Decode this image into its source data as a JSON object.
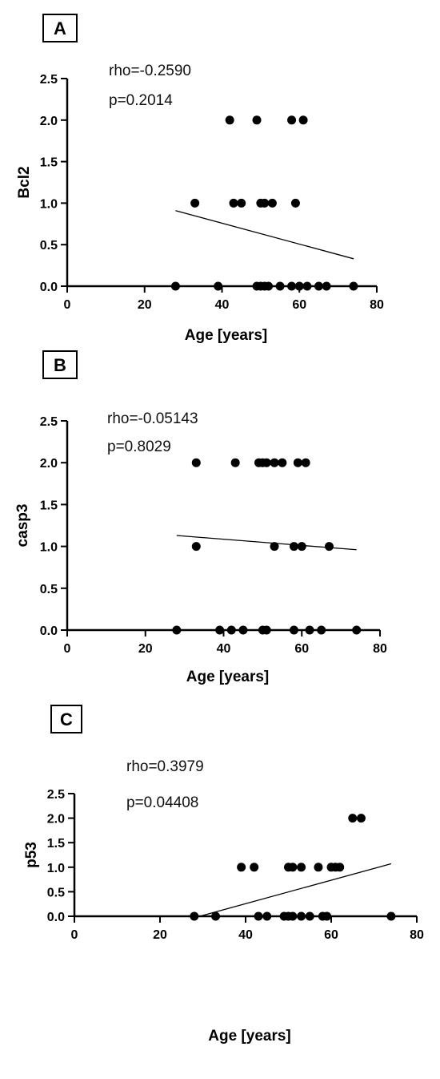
{
  "chart_data": [
    {
      "type": "scatter",
      "panel_label": "A",
      "xlabel": "Age [years]",
      "ylabel": "Bcl2",
      "xlim": [
        0,
        80
      ],
      "ylim": [
        0,
        2.5
      ],
      "xticks": [
        "0",
        "20",
        "40",
        "60",
        "80"
      ],
      "yticks": [
        "0.0",
        "0.5",
        "1.0",
        "1.5",
        "2.0",
        "2.5"
      ],
      "annotations": [
        "rho=-0.2590",
        "p=0.2014"
      ],
      "points": [
        {
          "x": 42,
          "y": 2
        },
        {
          "x": 49,
          "y": 2
        },
        {
          "x": 58,
          "y": 2
        },
        {
          "x": 61,
          "y": 2
        },
        {
          "x": 33,
          "y": 1
        },
        {
          "x": 43,
          "y": 1
        },
        {
          "x": 45,
          "y": 1
        },
        {
          "x": 50,
          "y": 1
        },
        {
          "x": 51,
          "y": 1
        },
        {
          "x": 53,
          "y": 1
        },
        {
          "x": 59,
          "y": 1
        },
        {
          "x": 28,
          "y": 0
        },
        {
          "x": 39,
          "y": 0
        },
        {
          "x": 49,
          "y": 0
        },
        {
          "x": 50,
          "y": 0
        },
        {
          "x": 51,
          "y": 0
        },
        {
          "x": 52,
          "y": 0
        },
        {
          "x": 55,
          "y": 0
        },
        {
          "x": 58,
          "y": 0
        },
        {
          "x": 60,
          "y": 0
        },
        {
          "x": 62,
          "y": 0
        },
        {
          "x": 65,
          "y": 0
        },
        {
          "x": 67,
          "y": 0
        },
        {
          "x": 74,
          "y": 0
        }
      ],
      "fit_line": {
        "x": [
          28,
          74
        ],
        "y": [
          0.91,
          0.33
        ]
      }
    },
    {
      "type": "scatter",
      "panel_label": "B",
      "xlabel": "Age [years]",
      "ylabel": "casp3",
      "xlim": [
        0,
        80
      ],
      "ylim": [
        0,
        2.5
      ],
      "xticks": [
        "0",
        "20",
        "40",
        "60",
        "80"
      ],
      "yticks": [
        "0.0",
        "0.5",
        "1.0",
        "1.5",
        "2.0",
        "2.5"
      ],
      "annotations": [
        "rho=-0.05143",
        "p=0.8029"
      ],
      "points": [
        {
          "x": 33,
          "y": 2
        },
        {
          "x": 43,
          "y": 2
        },
        {
          "x": 49,
          "y": 2
        },
        {
          "x": 50,
          "y": 2
        },
        {
          "x": 51,
          "y": 2
        },
        {
          "x": 53,
          "y": 2
        },
        {
          "x": 55,
          "y": 2
        },
        {
          "x": 59,
          "y": 2
        },
        {
          "x": 61,
          "y": 2
        },
        {
          "x": 33,
          "y": 1
        },
        {
          "x": 53,
          "y": 1
        },
        {
          "x": 58,
          "y": 1
        },
        {
          "x": 60,
          "y": 1
        },
        {
          "x": 67,
          "y": 1
        },
        {
          "x": 28,
          "y": 0
        },
        {
          "x": 39,
          "y": 0
        },
        {
          "x": 42,
          "y": 0
        },
        {
          "x": 45,
          "y": 0
        },
        {
          "x": 50,
          "y": 0
        },
        {
          "x": 51,
          "y": 0
        },
        {
          "x": 58,
          "y": 0
        },
        {
          "x": 62,
          "y": 0
        },
        {
          "x": 65,
          "y": 0
        },
        {
          "x": 74,
          "y": 0
        }
      ],
      "fit_line": {
        "x": [
          28,
          74
        ],
        "y": [
          1.13,
          0.96
        ]
      }
    },
    {
      "type": "scatter",
      "panel_label": "C",
      "xlabel": "Age [years]",
      "ylabel": "p53",
      "xlim": [
        0,
        80
      ],
      "ylim": [
        0,
        2.5
      ],
      "xticks": [
        "0",
        "20",
        "40",
        "60",
        "80"
      ],
      "yticks": [
        "0.0",
        "0.5",
        "1.0",
        "1.5",
        "2.0",
        "2.5"
      ],
      "annotations": [
        "rho=0.3979",
        "p=0.04408"
      ],
      "points": [
        {
          "x": 65,
          "y": 2
        },
        {
          "x": 67,
          "y": 2
        },
        {
          "x": 39,
          "y": 1
        },
        {
          "x": 42,
          "y": 1
        },
        {
          "x": 50,
          "y": 1
        },
        {
          "x": 51,
          "y": 1
        },
        {
          "x": 53,
          "y": 1
        },
        {
          "x": 57,
          "y": 1
        },
        {
          "x": 60,
          "y": 1
        },
        {
          "x": 61,
          "y": 1
        },
        {
          "x": 62,
          "y": 1
        },
        {
          "x": 28,
          "y": 0
        },
        {
          "x": 33,
          "y": 0
        },
        {
          "x": 43,
          "y": 0
        },
        {
          "x": 45,
          "y": 0
        },
        {
          "x": 49,
          "y": 0
        },
        {
          "x": 50,
          "y": 0
        },
        {
          "x": 51,
          "y": 0
        },
        {
          "x": 53,
          "y": 0
        },
        {
          "x": 55,
          "y": 0
        },
        {
          "x": 58,
          "y": 0
        },
        {
          "x": 59,
          "y": 0
        },
        {
          "x": 74,
          "y": 0
        }
      ],
      "fit_line": {
        "x": [
          28,
          74
        ],
        "y": [
          -0.03,
          1.07
        ]
      }
    }
  ]
}
